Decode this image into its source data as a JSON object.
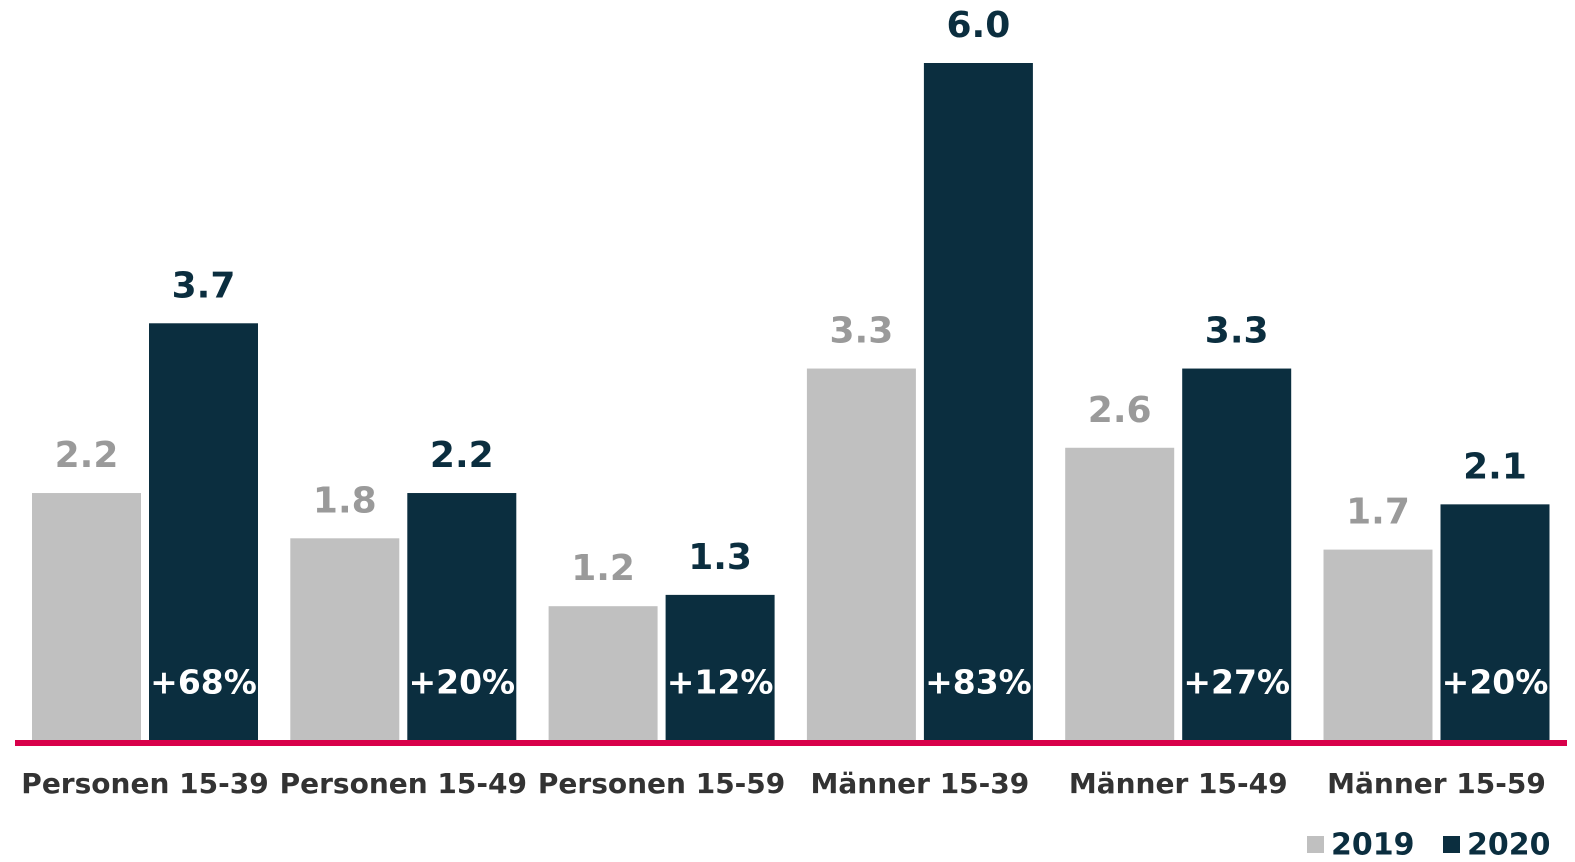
{
  "chart_data": {
    "type": "bar",
    "categories": [
      "Personen 15-39",
      "Personen 15-49",
      "Personen 15-59",
      "Männer 15-39",
      "Männer 15-49",
      "Männer 15-59"
    ],
    "series": [
      {
        "name": "2019",
        "color": "#c0c0c0",
        "values": [
          2.2,
          1.8,
          1.2,
          3.3,
          2.6,
          1.7
        ]
      },
      {
        "name": "2020",
        "color": "#0b2e3f",
        "values": [
          3.7,
          2.2,
          1.3,
          6.0,
          3.3,
          2.1
        ],
        "value_labels": [
          "3.7",
          "2.2",
          "1.3",
          "6.0",
          "3.3",
          "2.1"
        ]
      }
    ],
    "changes": [
      "+68%",
      "+20%",
      "+12%",
      "+83%",
      "+27%",
      "+20%"
    ],
    "ylim": [
      0,
      6
    ],
    "grid": false,
    "legend": "bottom-right",
    "baseline_color": "#d8004a"
  }
}
